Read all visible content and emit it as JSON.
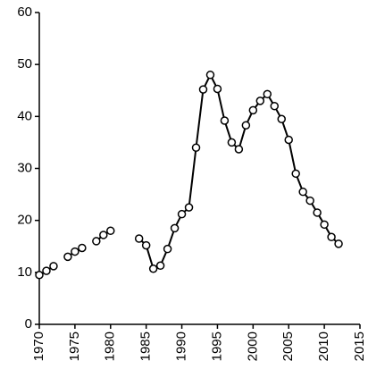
{
  "chart_data": {
    "type": "line",
    "x": [
      1970,
      1971,
      1972,
      1973,
      1974,
      1975,
      1976,
      1977,
      1978,
      1979,
      1980,
      1981,
      1982,
      1983,
      1984,
      1985,
      1986,
      1987,
      1988,
      1989,
      1990,
      1991,
      1992,
      1993,
      1994,
      1995,
      1996,
      1997,
      1998,
      1999,
      2000,
      2001,
      2002,
      2003,
      2004,
      2005,
      2006,
      2007,
      2008,
      2009,
      2010,
      2011,
      2012
    ],
    "series": [
      {
        "color": "#000000",
        "values": [
          9.5,
          10.3,
          11.2,
          null,
          13.0,
          14.0,
          14.7,
          null,
          16.0,
          17.2,
          18.0,
          null,
          null,
          null,
          16.5,
          15.2,
          10.7,
          11.3,
          14.5,
          18.5,
          21.2,
          22.5,
          34,
          45.2,
          48,
          45.3,
          39.2,
          35,
          33.7,
          38.3,
          41.2,
          43,
          44.3,
          42,
          39.5,
          35.5,
          29,
          25.5,
          23.8,
          21.5,
          19.2,
          16.8,
          15.5
        ]
      }
    ],
    "xlim": [
      1970,
      2015
    ],
    "xticks": [
      1970,
      1975,
      1980,
      1985,
      1990,
      1995,
      2000,
      2005,
      2010,
      2015
    ],
    "ylim": [
      0,
      60
    ],
    "yticks": [
      0,
      10,
      20,
      30,
      40,
      50,
      60
    ]
  }
}
